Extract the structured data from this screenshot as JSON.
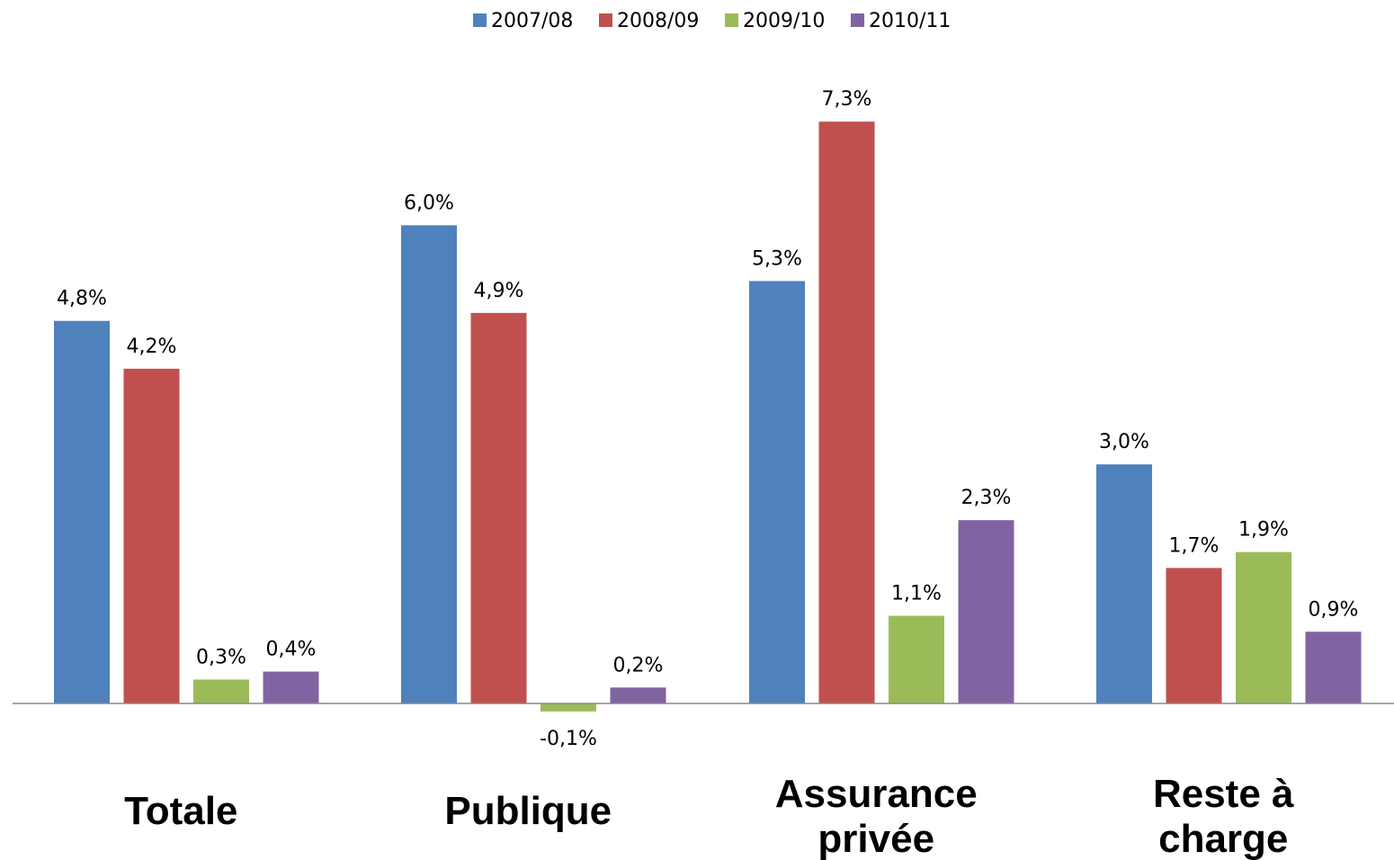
{
  "chart_data": {
    "type": "bar",
    "categories": [
      [
        "Totale"
      ],
      [
        "Publique"
      ],
      [
        "Assurance",
        "privée"
      ],
      [
        "Reste à",
        "charge"
      ]
    ],
    "series": [
      {
        "name": "2007/08",
        "color": "#4F81BD",
        "values": [
          4.8,
          6.0,
          5.3,
          3.0
        ],
        "labels": [
          "4,8%",
          "6,0%",
          "5,3%",
          "3,0%"
        ]
      },
      {
        "name": "2008/09",
        "color": "#C0504D",
        "values": [
          4.2,
          4.9,
          7.3,
          1.7
        ],
        "labels": [
          "4,2%",
          "4,9%",
          "7,3%",
          "1,7%"
        ]
      },
      {
        "name": "2009/10",
        "color": "#9BBB59",
        "values": [
          0.3,
          -0.1,
          1.1,
          1.9
        ],
        "labels": [
          "0,3%",
          "-0,1%",
          "1,1%",
          "1,9%"
        ]
      },
      {
        "name": "2010/11",
        "color": "#8064A2",
        "values": [
          0.4,
          0.2,
          2.3,
          0.9
        ],
        "labels": [
          "0,4%",
          "0,2%",
          "2,3%",
          "0,9%"
        ]
      }
    ],
    "legend_position": "top-center",
    "grid": false,
    "axis_color": "#898989"
  }
}
